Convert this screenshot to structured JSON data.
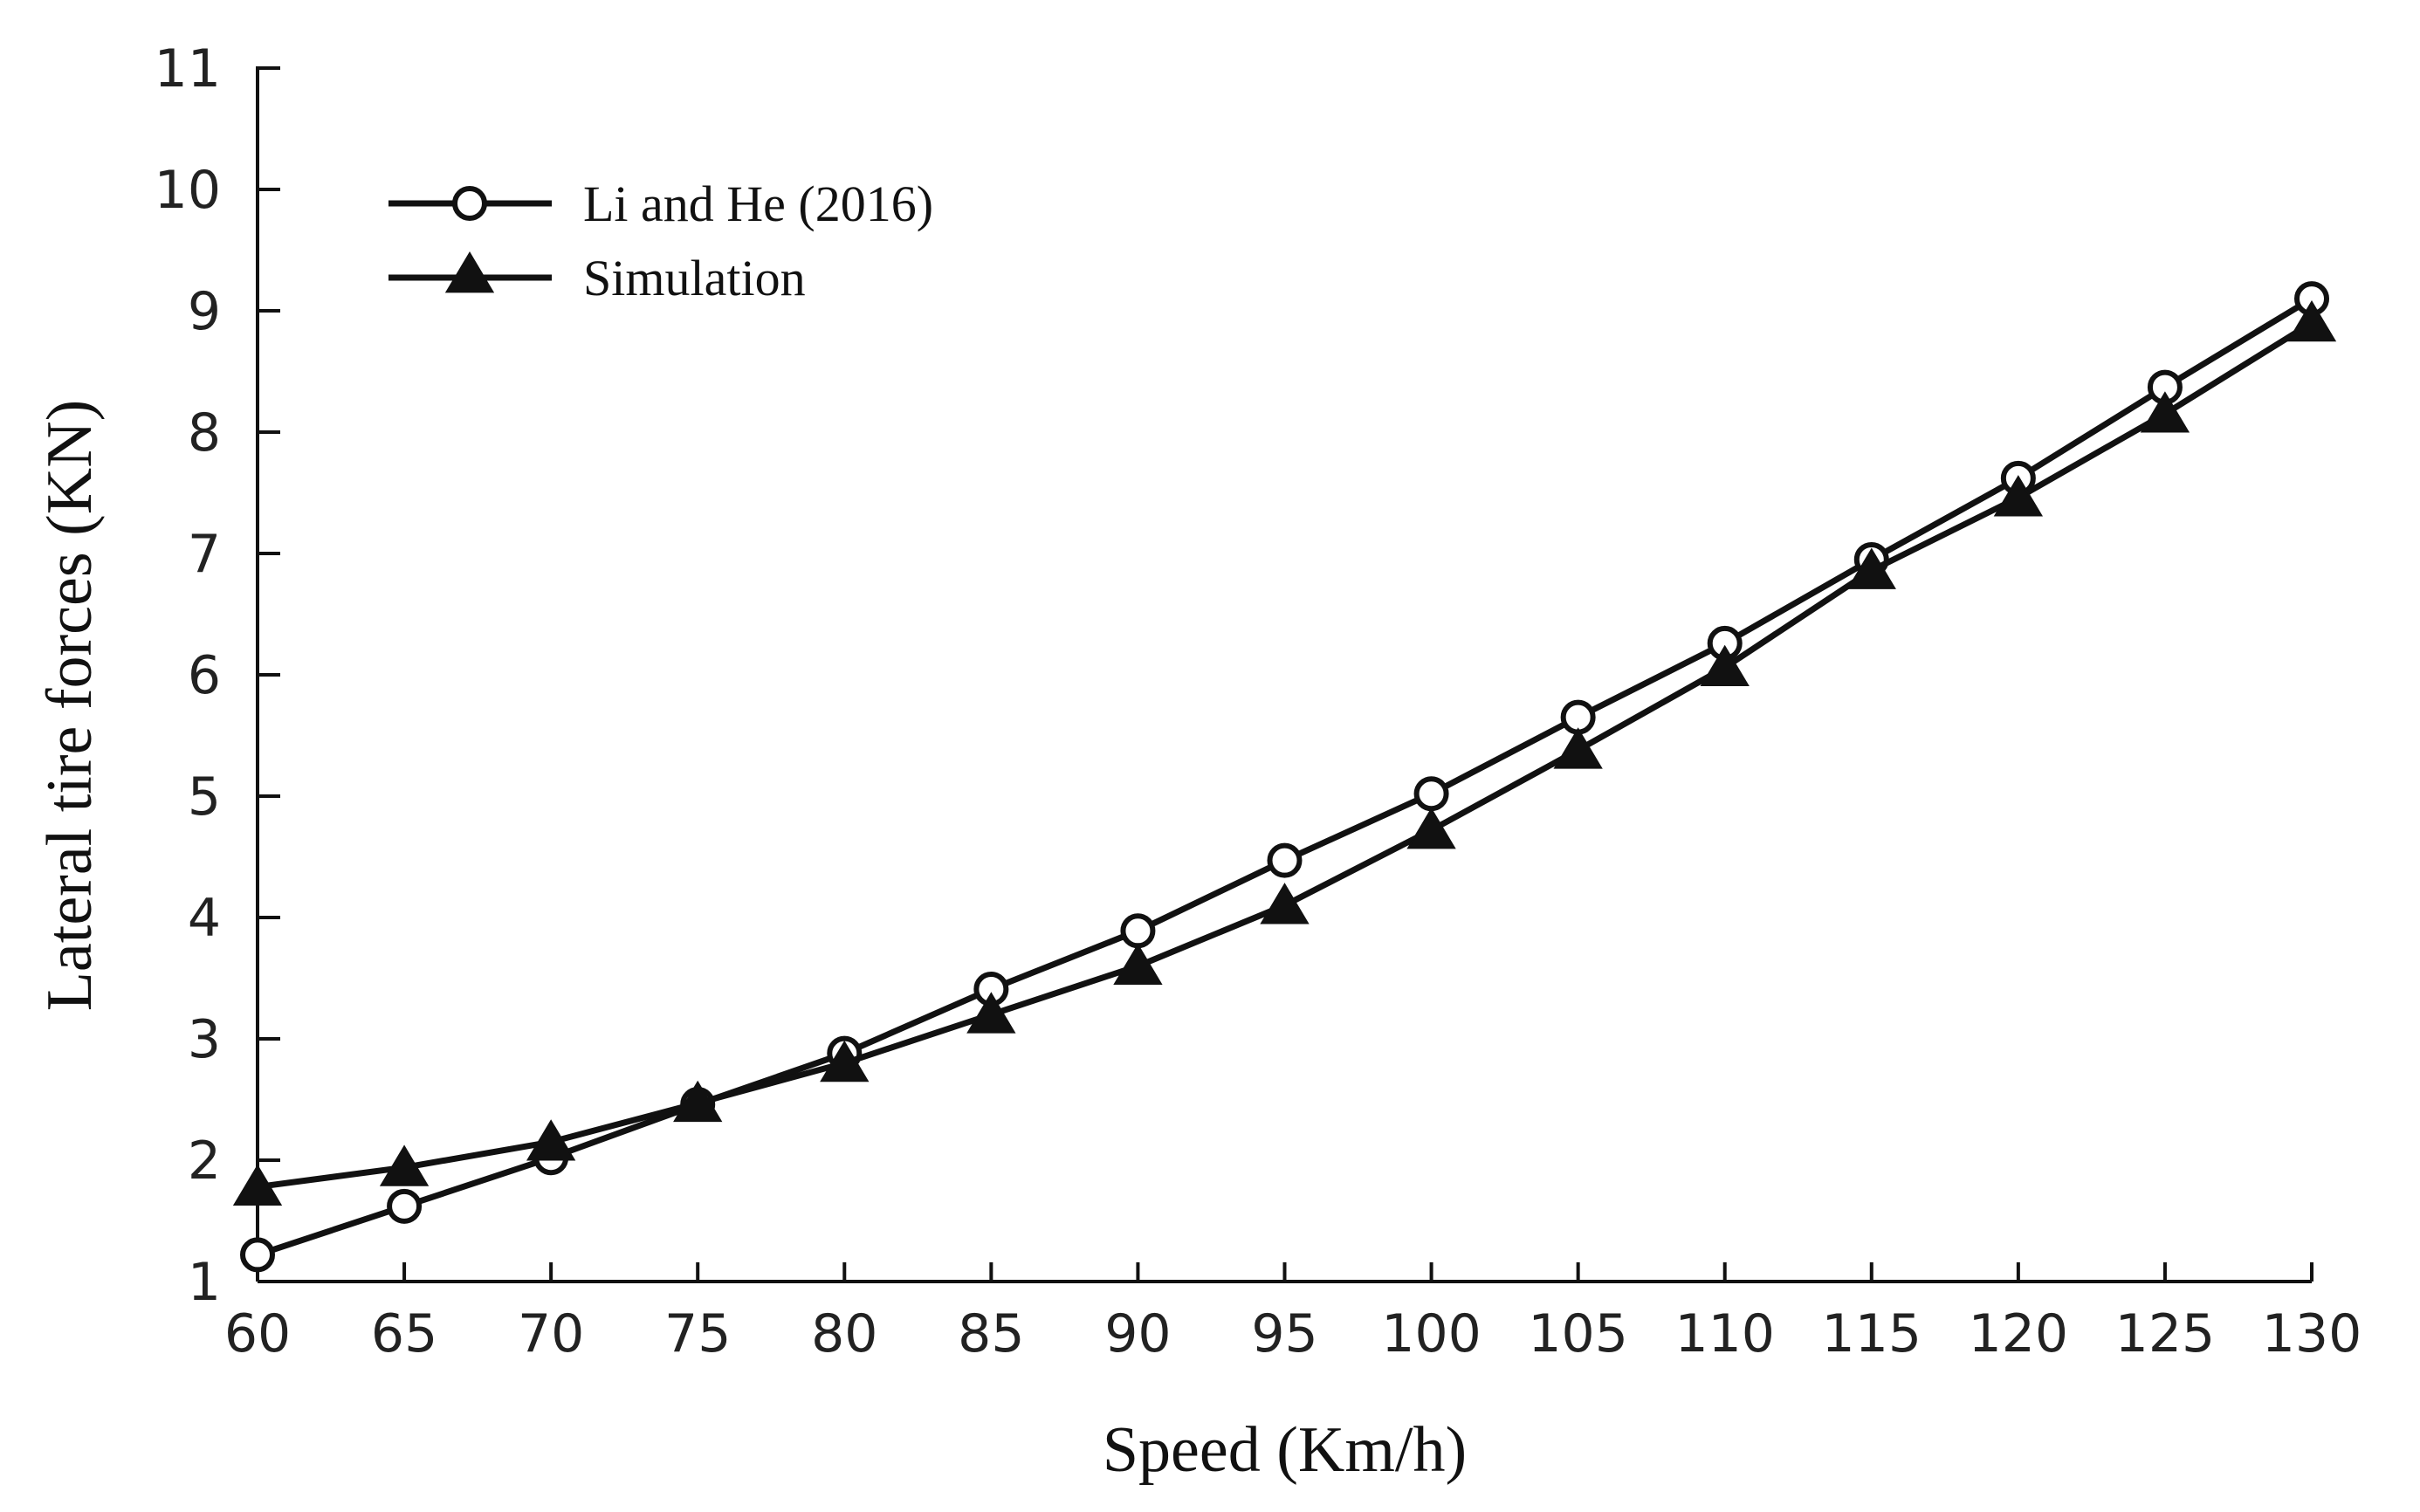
{
  "chart_data": {
    "type": "line",
    "title": "",
    "xlabel": "Speed (Km/h)",
    "ylabel": "Lateral tire forces (KN)",
    "x": [
      60,
      65,
      70,
      75,
      80,
      85,
      90,
      95,
      100,
      105,
      110,
      115,
      120,
      125,
      130
    ],
    "xlim": [
      60,
      130
    ],
    "ylim": [
      1,
      11
    ],
    "xticks": [
      60,
      65,
      70,
      75,
      80,
      85,
      90,
      95,
      100,
      105,
      110,
      115,
      120,
      125,
      130
    ],
    "yticks": [
      1,
      2,
      3,
      4,
      5,
      6,
      7,
      8,
      9,
      10,
      11
    ],
    "grid": false,
    "legend_position": "top-left",
    "series": [
      {
        "name": "Li and He (2016)",
        "marker": "open-circle",
        "color": "#111111",
        "values": [
          1.22,
          1.62,
          2.02,
          2.46,
          2.88,
          3.41,
          3.89,
          4.47,
          5.02,
          5.65,
          6.26,
          6.95,
          7.62,
          8.37,
          9.1
        ]
      },
      {
        "name": "Simulation",
        "marker": "filled-triangle",
        "color": "#111111",
        "values": [
          1.78,
          1.94,
          2.15,
          2.47,
          2.8,
          3.2,
          3.6,
          4.1,
          4.72,
          5.38,
          6.06,
          6.86,
          7.46,
          8.15,
          8.9
        ]
      }
    ]
  }
}
